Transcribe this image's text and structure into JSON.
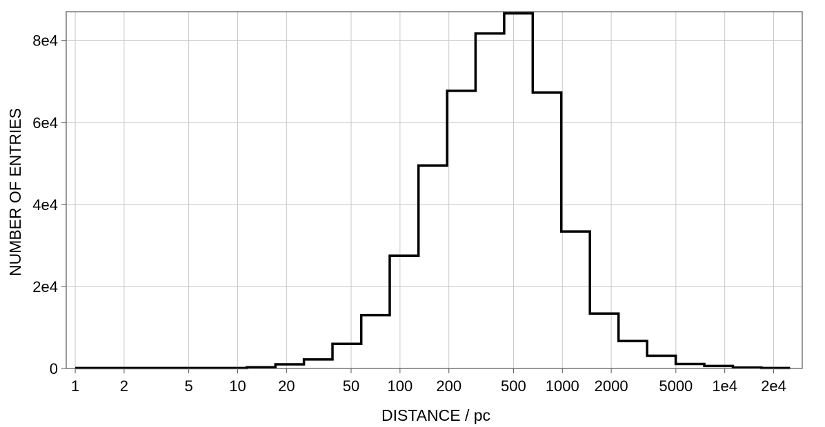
{
  "chart_data": {
    "type": "histogram",
    "xscale": "log",
    "xlim": [
      0.88,
      30000
    ],
    "ylim": [
      0,
      87000
    ],
    "grid": true,
    "legend": false,
    "xlabel": "DISTANCE / pc",
    "ylabel": "NUMBER OF ENTRIES",
    "x_ticks": [
      {
        "value": 1,
        "label": "1"
      },
      {
        "value": 2,
        "label": "2"
      },
      {
        "value": 5,
        "label": "5"
      },
      {
        "value": 10,
        "label": "10"
      },
      {
        "value": 20,
        "label": "20"
      },
      {
        "value": 50,
        "label": "50"
      },
      {
        "value": 100,
        "label": "100"
      },
      {
        "value": 200,
        "label": "200"
      },
      {
        "value": 500,
        "label": "500"
      },
      {
        "value": 1000,
        "label": "1000"
      },
      {
        "value": 2000,
        "label": "2000"
      },
      {
        "value": 5000,
        "label": "5000"
      },
      {
        "value": 10000,
        "label": "1e4"
      },
      {
        "value": 20000,
        "label": "2e4"
      }
    ],
    "y_ticks": [
      {
        "value": 0,
        "label": "0"
      },
      {
        "value": 20000,
        "label": "2e4"
      },
      {
        "value": 40000,
        "label": "4e4"
      },
      {
        "value": 60000,
        "label": "6e4"
      },
      {
        "value": 80000,
        "label": "8e4"
      }
    ],
    "bin_edges": [
      1.0,
      1.5,
      2.25,
      3.4,
      5.1,
      7.6,
      11.4,
      17.1,
      25.6,
      38.4,
      57.7,
      86.5,
      130,
      195,
      292,
      438,
      657,
      985,
      1478,
      2217,
      3325,
      4988,
      7482,
      11223,
      16834,
      25251
    ],
    "counts": [
      100,
      100,
      100,
      100,
      100,
      100,
      300,
      1000,
      2200,
      6000,
      13000,
      27500,
      49500,
      67700,
      81700,
      86600,
      67300,
      33400,
      13400,
      6700,
      3100,
      1100,
      600,
      200,
      100
    ],
    "colors": {
      "line": "#000000",
      "grid": "#c8c8c8",
      "frame": "#555555",
      "background": "#ffffff"
    }
  }
}
